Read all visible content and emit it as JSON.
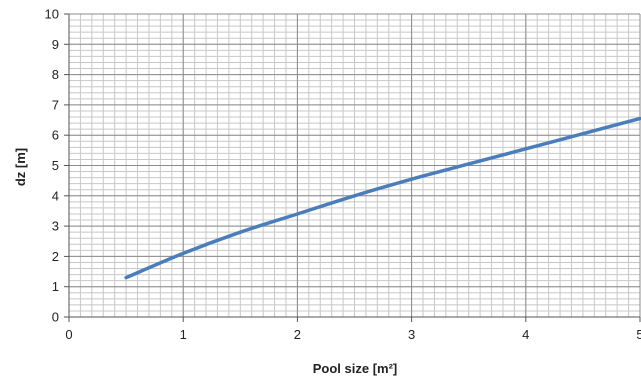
{
  "chart_data": {
    "type": "line",
    "title": "",
    "xlabel": "Pool size [m²]",
    "ylabel": "dz [m]",
    "xlim": [
      0,
      5
    ],
    "ylim": [
      0,
      10
    ],
    "x_ticks": [
      "0",
      "1",
      "2",
      "3",
      "4",
      "5"
    ],
    "y_ticks": [
      "0",
      "1",
      "2",
      "3",
      "4",
      "5",
      "6",
      "7",
      "8",
      "9",
      "10"
    ],
    "grid": true,
    "legend": "none",
    "series": [
      {
        "color": "#4a7ebb",
        "x": [
          0.5,
          1.0,
          1.5,
          2.0,
          2.5,
          3.0,
          3.5,
          4.0,
          4.5,
          5.0
        ],
        "y": [
          1.3,
          2.1,
          2.8,
          3.4,
          4.0,
          4.55,
          5.05,
          5.55,
          6.05,
          6.55
        ]
      }
    ]
  }
}
